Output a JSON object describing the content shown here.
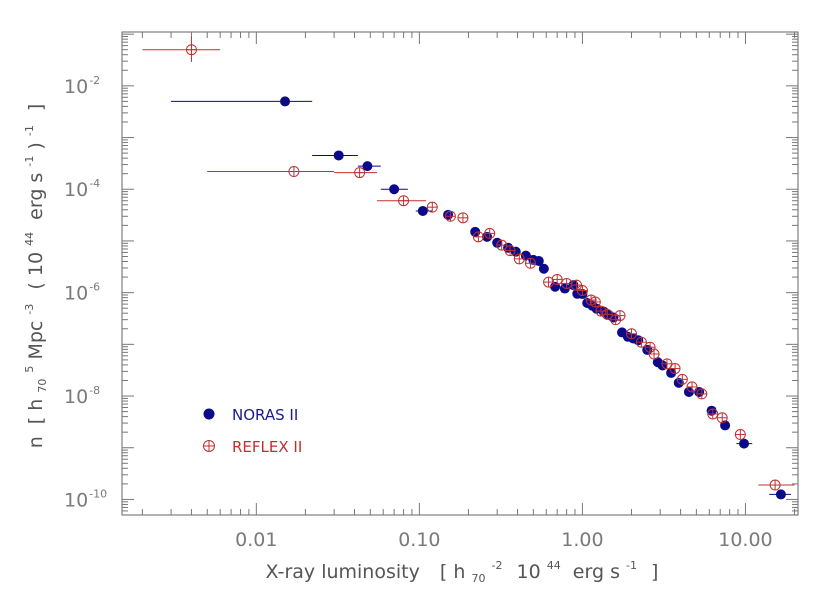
{
  "chart_data": {
    "type": "scatter",
    "xlabel": {
      "prefix": "X-ray luminosity",
      "open": "[",
      "h": "h",
      "h_sub": "70",
      "h_exp": "-2",
      "ten": "10",
      "ten_exp": "44",
      "unit": "erg s",
      "s_exp": "-1",
      "close": "]"
    },
    "ylabel": {
      "n": "n",
      "open": "[",
      "h": "h",
      "h_sub": "70",
      "h_exp": "5",
      "mpc": "Mpc",
      "mpc_exp": "-3",
      "paren_open": "(",
      "ten": "10",
      "ten_exp": "44",
      "erg": "erg s",
      "s_exp": "-1",
      "paren_close": ")",
      "outer_exp": "-1",
      "close": "]"
    },
    "x_scale": "log",
    "y_scale": "log",
    "xlim": [
      0.0015,
      21
    ],
    "ylim": [
      5e-11,
      0.11
    ],
    "x_ticks": [
      {
        "value": 0.01,
        "label": "0.01"
      },
      {
        "value": 0.1,
        "label": "0.10"
      },
      {
        "value": 1,
        "label": "1.00"
      },
      {
        "value": 10,
        "label": "10.00"
      }
    ],
    "y_ticks": [
      {
        "value": 0.01,
        "base": "10",
        "exp": "-2"
      },
      {
        "value": 0.0001,
        "base": "10",
        "exp": "-4"
      },
      {
        "value": 1e-06,
        "base": "10",
        "exp": "-6"
      },
      {
        "value": 1e-08,
        "base": "10",
        "exp": "-8"
      },
      {
        "value": 1e-10,
        "base": "10",
        "exp": "-10"
      }
    ],
    "grid": false,
    "legend_position": "lower-left",
    "series": [
      {
        "name": "NORAS II",
        "marker": "filled-circle",
        "color": "#0a0a8a",
        "points": [
          {
            "x": 0.015,
            "y": 0.005,
            "xerr": [
              0.003,
              0.022
            ]
          },
          {
            "x": 0.032,
            "y": 0.00045,
            "xerr": [
              0.022,
              0.042
            ]
          },
          {
            "x": 0.048,
            "y": 0.00028,
            "xerr": [
              0.042,
              0.058
            ]
          },
          {
            "x": 0.07,
            "y": 0.0001,
            "xerr": [
              0.058,
              0.085
            ]
          },
          {
            "x": 0.105,
            "y": 3.8e-05,
            "xerr": [
              0.095,
              0.12
            ]
          },
          {
            "x": 0.15,
            "y": 3.2e-05
          },
          {
            "x": 0.22,
            "y": 1.5e-05
          },
          {
            "x": 0.26,
            "y": 1.2e-05
          },
          {
            "x": 0.3,
            "y": 9.2e-06
          },
          {
            "x": 0.35,
            "y": 7.4e-06
          },
          {
            "x": 0.39,
            "y": 6.2e-06
          },
          {
            "x": 0.45,
            "y": 5.2e-06
          },
          {
            "x": 0.5,
            "y": 4.3e-06
          },
          {
            "x": 0.54,
            "y": 4.1e-06
          },
          {
            "x": 0.58,
            "y": 2.9e-06
          },
          {
            "x": 0.68,
            "y": 1.3e-06
          },
          {
            "x": 0.78,
            "y": 1.2e-06
          },
          {
            "x": 0.88,
            "y": 1.4e-06
          },
          {
            "x": 0.93,
            "y": 9.5e-07
          },
          {
            "x": 1.0,
            "y": 9.4e-07
          },
          {
            "x": 1.07,
            "y": 6.3e-07
          },
          {
            "x": 1.15,
            "y": 5.6e-07
          },
          {
            "x": 1.22,
            "y": 4.9e-07
          },
          {
            "x": 1.35,
            "y": 4.3e-07
          },
          {
            "x": 1.45,
            "y": 3.7e-07
          },
          {
            "x": 1.55,
            "y": 3.3e-07
          },
          {
            "x": 1.75,
            "y": 1.7e-07
          },
          {
            "x": 1.9,
            "y": 1.4e-07
          },
          {
            "x": 2.05,
            "y": 1.3e-07
          },
          {
            "x": 2.2,
            "y": 1.2e-07
          },
          {
            "x": 2.5,
            "y": 7.8e-08
          },
          {
            "x": 2.9,
            "y": 4.5e-08
          },
          {
            "x": 3.1,
            "y": 3.9e-08
          },
          {
            "x": 3.5,
            "y": 2.8e-08
          },
          {
            "x": 3.9,
            "y": 1.8e-08
          },
          {
            "x": 4.5,
            "y": 1.2e-08
          },
          {
            "x": 5.2,
            "y": 1.2e-08
          },
          {
            "x": 6.2,
            "y": 5.2e-09
          },
          {
            "x": 7.5,
            "y": 2.7e-09
          },
          {
            "x": 9.8,
            "y": 1.2e-09,
            "xerr": [
              8.8,
              11
            ]
          },
          {
            "x": 16.5,
            "y": 1.25e-10,
            "xerr": [
              14,
              19
            ]
          }
        ]
      },
      {
        "name": "REFLEX II",
        "marker": "open-circle-cross",
        "color": "#c03030",
        "points": [
          {
            "x": 0.004,
            "y": 0.05,
            "xerr": [
              0.002,
              0.006
            ],
            "yerr": [
              0.029,
              0.09
            ]
          },
          {
            "x": 0.017,
            "y": 0.00022,
            "xerr": [
              0.005,
              0.03
            ]
          },
          {
            "x": 0.043,
            "y": 0.00021,
            "xerr": [
              0.03,
              0.055
            ]
          },
          {
            "x": 0.08,
            "y": 6e-05,
            "xerr": [
              0.055,
              0.11
            ]
          },
          {
            "x": 0.12,
            "y": 4.5e-05
          },
          {
            "x": 0.155,
            "y": 3e-05
          },
          {
            "x": 0.185,
            "y": 2.8e-05
          },
          {
            "x": 0.23,
            "y": 1.2e-05
          },
          {
            "x": 0.27,
            "y": 1.4e-05
          },
          {
            "x": 0.32,
            "y": 8.3e-06
          },
          {
            "x": 0.36,
            "y": 6.5e-06
          },
          {
            "x": 0.41,
            "y": 4.5e-06
          },
          {
            "x": 0.48,
            "y": 3.7e-06
          },
          {
            "x": 0.62,
            "y": 1.6e-06
          },
          {
            "x": 0.7,
            "y": 1.8e-06
          },
          {
            "x": 0.8,
            "y": 1.5e-06
          },
          {
            "x": 0.92,
            "y": 1.4e-06
          },
          {
            "x": 1.0,
            "y": 1.1e-06
          },
          {
            "x": 1.13,
            "y": 7.2e-07
          },
          {
            "x": 1.2,
            "y": 6.6e-07
          },
          {
            "x": 1.3,
            "y": 4.4e-07
          },
          {
            "x": 1.42,
            "y": 3.8e-07
          },
          {
            "x": 1.6,
            "y": 3e-07
          },
          {
            "x": 1.7,
            "y": 3.6e-07
          },
          {
            "x": 2.0,
            "y": 1.6e-07
          },
          {
            "x": 2.3,
            "y": 1.1e-07
          },
          {
            "x": 2.6,
            "y": 8.8e-08
          },
          {
            "x": 2.75,
            "y": 6.5e-08
          },
          {
            "x": 3.3,
            "y": 4.2e-08
          },
          {
            "x": 3.7,
            "y": 3.4e-08
          },
          {
            "x": 4.1,
            "y": 2.1e-08
          },
          {
            "x": 4.7,
            "y": 1.5e-08
          },
          {
            "x": 5.4,
            "y": 1.1e-08
          },
          {
            "x": 6.3,
            "y": 4.5e-09
          },
          {
            "x": 7.2,
            "y": 3.8e-09
          },
          {
            "x": 9.3,
            "y": 1.8e-09
          },
          {
            "x": 15.2,
            "y": 1.9e-10,
            "xerr": [
              12,
              20
            ]
          }
        ]
      }
    ]
  }
}
